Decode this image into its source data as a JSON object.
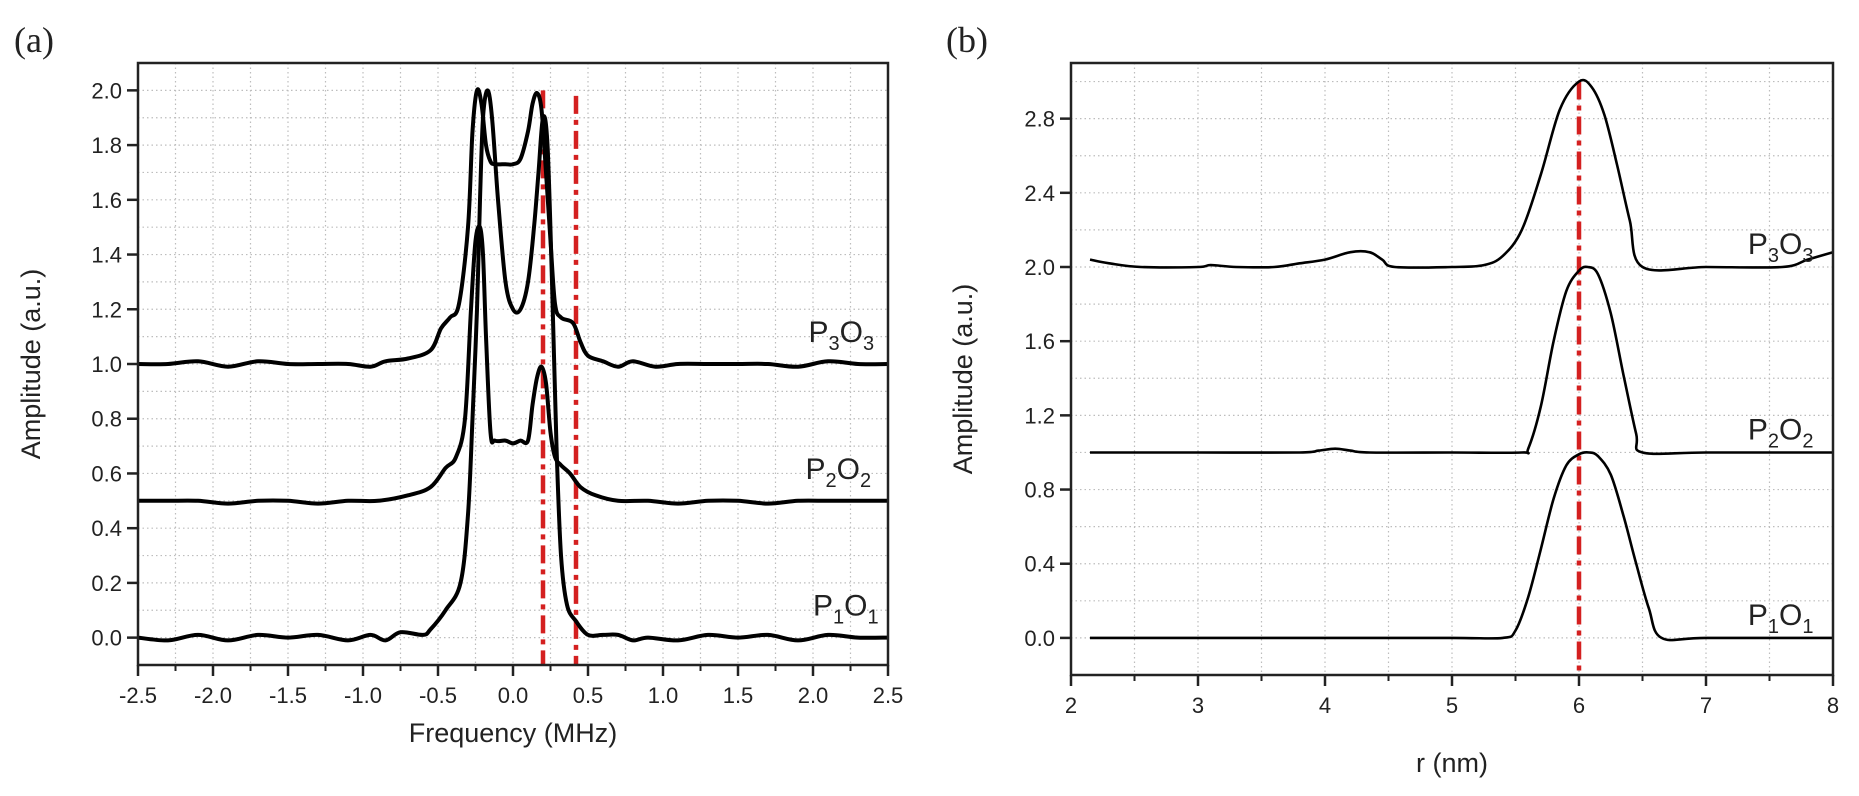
{
  "chart_data": [
    {
      "panel_label": "(a)",
      "type": "line",
      "title": "",
      "xlabel": "Frequency (MHz)",
      "ylabel": "Amplitude (a.u.)",
      "xlim": [
        -2.5,
        2.5
      ],
      "ylim": [
        -0.1,
        2.1
      ],
      "xticks": [
        "-2.5",
        "-2.0",
        "-1.5",
        "-1.0",
        "-0.5",
        "0.0",
        "0.5",
        "1.0",
        "1.5",
        "2.0",
        "2.5"
      ],
      "xtick_values": [
        -2.5,
        -2.0,
        -1.5,
        -1.0,
        -0.5,
        0.0,
        0.5,
        1.0,
        1.5,
        2.0,
        2.5
      ],
      "yticks": [
        "0.0",
        "0.2",
        "0.4",
        "0.6",
        "0.8",
        "1.0",
        "1.2",
        "1.4",
        "1.6",
        "1.8",
        "2.0"
      ],
      "ytick_values": [
        0.0,
        0.2,
        0.4,
        0.6,
        0.8,
        1.0,
        1.2,
        1.4,
        1.6,
        1.8,
        2.0
      ],
      "grid": true,
      "reference_lines": [
        {
          "x": 0.2,
          "color": "#d42020",
          "style": "dash-dot",
          "y_top": 2.0
        },
        {
          "x": 0.42,
          "color": "#d42020",
          "style": "dash-dot",
          "y_top": 1.98
        }
      ],
      "series": [
        {
          "name": "P1O1",
          "label_main": [
            "P",
            "O"
          ],
          "label_sub": [
            "1",
            "1"
          ],
          "label_pos": {
            "x": 2.0,
            "y": 0.08
          },
          "x": [
            -2.5,
            -2.3,
            -2.1,
            -1.9,
            -1.7,
            -1.5,
            -1.3,
            -1.1,
            -0.95,
            -0.85,
            -0.75,
            -0.6,
            -0.55,
            -0.45,
            -0.35,
            -0.3,
            -0.27,
            -0.24,
            -0.22,
            -0.2,
            -0.17,
            -0.14,
            -0.1,
            -0.05,
            0.0,
            0.05,
            0.1,
            0.14,
            0.17,
            0.2,
            0.23,
            0.26,
            0.29,
            0.32,
            0.36,
            0.42,
            0.5,
            0.6,
            0.7,
            0.8,
            0.9,
            1.1,
            1.3,
            1.5,
            1.7,
            1.9,
            2.1,
            2.3,
            2.5
          ],
          "y": [
            0.0,
            -0.01,
            0.01,
            -0.01,
            0.01,
            0.0,
            0.01,
            -0.01,
            0.01,
            -0.01,
            0.02,
            0.01,
            0.03,
            0.1,
            0.2,
            0.45,
            0.8,
            1.2,
            1.6,
            1.9,
            2.0,
            1.9,
            1.6,
            1.3,
            1.2,
            1.2,
            1.3,
            1.5,
            1.7,
            1.9,
            1.8,
            1.3,
            0.7,
            0.3,
            0.12,
            0.06,
            0.01,
            0.01,
            0.01,
            -0.01,
            0.0,
            -0.01,
            0.01,
            0.0,
            0.01,
            -0.01,
            0.01,
            0.0,
            0.0
          ]
        },
        {
          "name": "P2O2",
          "label_main": [
            "P",
            "O"
          ],
          "label_sub": [
            "2",
            "2"
          ],
          "label_pos": {
            "x": 1.95,
            "y": 0.58
          },
          "x": [
            -2.5,
            -2.3,
            -2.1,
            -1.9,
            -1.7,
            -1.5,
            -1.3,
            -1.1,
            -0.9,
            -0.7,
            -0.55,
            -0.45,
            -0.38,
            -0.32,
            -0.28,
            -0.25,
            -0.22,
            -0.2,
            -0.18,
            -0.15,
            -0.12,
            -0.05,
            0.0,
            0.05,
            0.1,
            0.13,
            0.16,
            0.19,
            0.22,
            0.25,
            0.28,
            0.32,
            0.38,
            0.45,
            0.55,
            0.7,
            0.9,
            1.1,
            1.3,
            1.5,
            1.7,
            1.9,
            2.1,
            2.3,
            2.5
          ],
          "y": [
            0.5,
            0.5,
            0.5,
            0.49,
            0.5,
            0.5,
            0.49,
            0.5,
            0.5,
            0.52,
            0.55,
            0.62,
            0.66,
            0.8,
            1.2,
            1.45,
            1.5,
            1.4,
            1.1,
            0.75,
            0.72,
            0.72,
            0.71,
            0.72,
            0.72,
            0.85,
            0.95,
            0.99,
            0.93,
            0.75,
            0.66,
            0.63,
            0.6,
            0.55,
            0.52,
            0.5,
            0.5,
            0.49,
            0.5,
            0.5,
            0.49,
            0.5,
            0.5,
            0.5,
            0.5
          ]
        },
        {
          "name": "P3O3",
          "label_main": [
            "P",
            "O"
          ],
          "label_sub": [
            "3",
            "3"
          ],
          "label_pos": {
            "x": 1.97,
            "y": 1.08
          },
          "x": [
            -2.5,
            -2.3,
            -2.1,
            -1.9,
            -1.7,
            -1.5,
            -1.3,
            -1.1,
            -0.95,
            -0.85,
            -0.7,
            -0.55,
            -0.48,
            -0.42,
            -0.36,
            -0.3,
            -0.27,
            -0.24,
            -0.21,
            -0.18,
            -0.15,
            -0.12,
            -0.05,
            0.0,
            0.05,
            0.1,
            0.13,
            0.16,
            0.19,
            0.22,
            0.25,
            0.28,
            0.32,
            0.4,
            0.45,
            0.5,
            0.6,
            0.7,
            0.8,
            0.95,
            1.1,
            1.3,
            1.5,
            1.7,
            1.9,
            2.1,
            2.3,
            2.5
          ],
          "y": [
            1.0,
            1.0,
            1.01,
            0.99,
            1.01,
            1.0,
            1.0,
            1.0,
            0.99,
            1.01,
            1.02,
            1.05,
            1.13,
            1.17,
            1.22,
            1.5,
            1.85,
            2.0,
            1.95,
            1.8,
            1.74,
            1.73,
            1.73,
            1.73,
            1.75,
            1.85,
            1.95,
            1.99,
            1.93,
            1.7,
            1.45,
            1.22,
            1.17,
            1.15,
            1.08,
            1.03,
            1.01,
            0.99,
            1.01,
            0.99,
            1.0,
            1.0,
            1.0,
            1.0,
            0.99,
            1.01,
            1.0,
            1.0
          ]
        }
      ]
    },
    {
      "panel_label": "(b)",
      "type": "line",
      "title": "",
      "xlabel": "r (nm)",
      "ylabel": "Amplitude (a.u.)",
      "xlim": [
        2,
        8
      ],
      "ylim": [
        -0.2,
        3.1
      ],
      "xticks": [
        "2",
        "3",
        "4",
        "5",
        "6",
        "7",
        "8"
      ],
      "xtick_values": [
        2,
        3,
        4,
        5,
        6,
        7,
        8
      ],
      "yticks": [
        "0.0",
        "0.4",
        "0.8",
        "1.2",
        "1.6",
        "2.0",
        "2.4",
        "2.8"
      ],
      "ytick_values": [
        0.0,
        0.4,
        0.8,
        1.2,
        1.6,
        2.0,
        2.4,
        2.8
      ],
      "grid": true,
      "reference_lines": [
        {
          "x": 6.0,
          "color": "#d42020",
          "style": "dash-dot",
          "y_top": 3.0
        }
      ],
      "series": [
        {
          "name": "P1O1",
          "label_main": [
            "P",
            "O"
          ],
          "label_sub": [
            "1",
            "1"
          ],
          "label_pos": {
            "x": 7.33,
            "y": 0.07
          },
          "x": [
            2.15,
            3.0,
            4.0,
            5.0,
            5.4,
            5.5,
            5.6,
            5.7,
            5.8,
            5.9,
            6.0,
            6.08,
            6.15,
            6.25,
            6.35,
            6.45,
            6.55,
            6.65,
            7.0,
            8.0
          ],
          "y": [
            0.0,
            0.0,
            0.0,
            0.0,
            0.0,
            0.04,
            0.22,
            0.48,
            0.75,
            0.93,
            0.99,
            1.0,
            0.98,
            0.88,
            0.66,
            0.4,
            0.16,
            0.0,
            0.0,
            0.0
          ]
        },
        {
          "name": "P2O2",
          "label_main": [
            "P",
            "O"
          ],
          "label_sub": [
            "2",
            "2"
          ],
          "label_pos": {
            "x": 7.33,
            "y": 1.07
          },
          "x": [
            2.15,
            3.0,
            3.8,
            3.95,
            4.08,
            4.2,
            4.35,
            5.0,
            5.55,
            5.6,
            5.7,
            5.8,
            5.9,
            6.0,
            6.07,
            6.15,
            6.25,
            6.35,
            6.45,
            6.5,
            7.0,
            8.0
          ],
          "y": [
            1.0,
            1.0,
            1.0,
            1.01,
            1.02,
            1.01,
            1.0,
            1.0,
            1.0,
            1.02,
            1.25,
            1.6,
            1.87,
            1.98,
            2.0,
            1.96,
            1.75,
            1.42,
            1.1,
            1.0,
            1.0,
            1.0
          ],
          "note": "offset +1.0"
        },
        {
          "name": "P3O3",
          "label_main": [
            "P",
            "O"
          ],
          "label_sub": [
            "3",
            "3"
          ],
          "label_pos": {
            "x": 7.33,
            "y": 2.07
          },
          "x": [
            2.15,
            2.3,
            2.55,
            3.0,
            3.1,
            3.3,
            3.6,
            3.8,
            4.0,
            4.2,
            4.35,
            4.45,
            4.55,
            5.0,
            5.25,
            5.4,
            5.55,
            5.7,
            5.85,
            6.0,
            6.1,
            6.2,
            6.3,
            6.4,
            6.5,
            7.0,
            7.6,
            7.8,
            8.0
          ],
          "y": [
            2.04,
            2.02,
            2.0,
            2.0,
            2.01,
            2.0,
            2.0,
            2.02,
            2.04,
            2.08,
            2.08,
            2.04,
            2.0,
            2.0,
            2.01,
            2.06,
            2.2,
            2.5,
            2.85,
            3.0,
            2.97,
            2.82,
            2.55,
            2.25,
            2.0,
            2.0,
            2.0,
            2.04,
            2.08
          ],
          "note": "offset +2.0"
        }
      ]
    }
  ]
}
